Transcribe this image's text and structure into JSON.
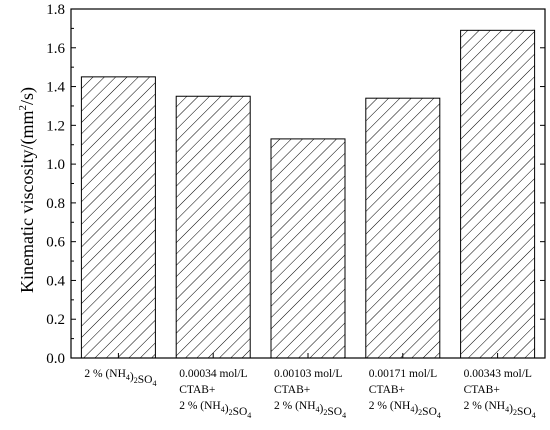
{
  "chart_data": {
    "type": "bar",
    "title": "",
    "xlabel": "",
    "ylabel": "Kinematic viscosity/(mm²/s)",
    "ylabel_parts": [
      "Kinematic viscosity/(mm",
      "2",
      "/s)"
    ],
    "ylim": [
      0.0,
      1.8
    ],
    "yticks": [
      "0.0",
      "0.2",
      "0.4",
      "0.6",
      "0.8",
      "1.0",
      "1.2",
      "1.4",
      "1.6",
      "1.8"
    ],
    "grid": false,
    "bar_fill": "hatched (diagonal)",
    "bar_color": "#000000",
    "categories": [
      "2 % (NH4)2SO4",
      "0.00034 mol/L CTAB+ 2 % (NH4)2SO4",
      "0.00103 mol/L CTAB+ 2 % (NH4)2SO4",
      "0.00171 mol/L CTAB+ 2 % (NH4)2SO4",
      "0.00343 mol/L CTAB+ 2 % (NH4)2SO4"
    ],
    "category_label_lines": [
      [
        [
          [
            "2 % (NH",
            ""
          ],
          [
            "4",
            "sub"
          ],
          [
            ")",
            ""
          ],
          [
            "2",
            "sub"
          ],
          [
            "SO",
            ""
          ],
          [
            "4",
            "sub"
          ]
        ]
      ],
      [
        [
          [
            "0.00034 mol/L",
            ""
          ]
        ],
        [
          [
            "CTAB+",
            ""
          ]
        ],
        [
          [
            "2 % (NH",
            ""
          ],
          [
            "4",
            "sub"
          ],
          [
            ")",
            ""
          ],
          [
            "2",
            "sub"
          ],
          [
            "SO",
            ""
          ],
          [
            "4",
            "sub"
          ]
        ]
      ],
      [
        [
          [
            "0.00103 mol/L",
            ""
          ]
        ],
        [
          [
            "CTAB+",
            ""
          ]
        ],
        [
          [
            "2 % (NH",
            ""
          ],
          [
            "4",
            "sub"
          ],
          [
            ")",
            ""
          ],
          [
            "2",
            "sub"
          ],
          [
            "SO",
            ""
          ],
          [
            "4",
            "sub"
          ]
        ]
      ],
      [
        [
          [
            "0.00171 mol/L",
            ""
          ]
        ],
        [
          [
            "CTAB+",
            ""
          ]
        ],
        [
          [
            "2 % (NH",
            ""
          ],
          [
            "4",
            "sub"
          ],
          [
            ")",
            ""
          ],
          [
            "2",
            "sub"
          ],
          [
            "SO",
            ""
          ],
          [
            "4",
            "sub"
          ]
        ]
      ],
      [
        [
          [
            "0.00343 mol/L",
            ""
          ]
        ],
        [
          [
            "CTAB+",
            ""
          ]
        ],
        [
          [
            "2 % (NH",
            ""
          ],
          [
            "4",
            "sub"
          ],
          [
            ")",
            ""
          ],
          [
            "2",
            "sub"
          ],
          [
            "SO",
            ""
          ],
          [
            "4",
            "sub"
          ]
        ]
      ]
    ],
    "values": [
      1.45,
      1.35,
      1.13,
      1.34,
      1.69
    ]
  }
}
